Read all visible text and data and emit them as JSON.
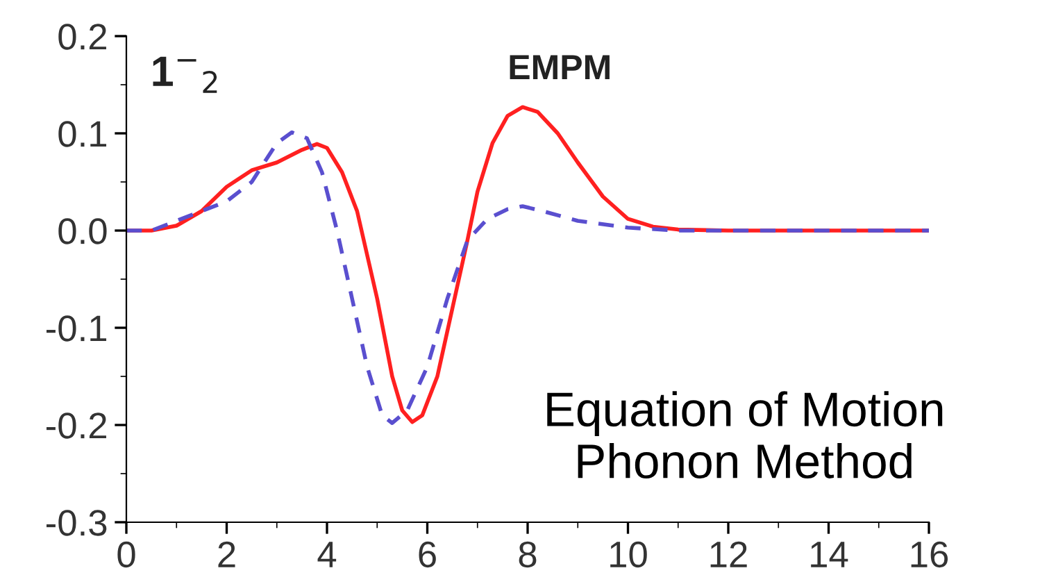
{
  "chart_data": {
    "type": "line",
    "annotations": [
      "1$^{−}$$_{2}$",
      "EMPM",
      "Equation of Motion\nPhonon Method"
    ],
    "series": [
      {
        "color": "#ff2020",
        "line_style": "solid",
        "x": [
          0,
          0.5,
          1,
          1.5,
          2,
          2.5,
          3,
          3.5,
          3.8,
          4,
          4.3,
          4.6,
          5,
          5.3,
          5.5,
          5.7,
          5.9,
          6.2,
          6.5,
          6.8,
          7,
          7.3,
          7.6,
          7.9,
          8.2,
          8.6,
          9,
          9.5,
          10,
          10.5,
          11,
          12,
          16
        ],
        "values": [
          0,
          0,
          0.005,
          0.02,
          0.045,
          0.062,
          0.07,
          0.083,
          0.089,
          0.085,
          0.06,
          0.02,
          -0.07,
          -0.15,
          -0.185,
          -0.197,
          -0.19,
          -0.15,
          -0.08,
          -0.01,
          0.04,
          0.09,
          0.118,
          0.127,
          0.122,
          0.1,
          0.07,
          0.035,
          0.012,
          0.004,
          0.001,
          0,
          0
        ]
      },
      {
        "color": "#5a4fcf",
        "line_style": "dashed",
        "x": [
          0,
          0.5,
          1,
          1.5,
          2,
          2.5,
          3,
          3.3,
          3.6,
          3.9,
          4.2,
          4.5,
          4.8,
          5.1,
          5.3,
          5.6,
          6,
          6.4,
          6.8,
          7.2,
          7.6,
          7.9,
          8.3,
          9,
          10,
          11,
          16
        ],
        "values": [
          0,
          0,
          0.01,
          0.02,
          0.03,
          0.05,
          0.09,
          0.101,
          0.095,
          0.06,
          0,
          -0.07,
          -0.14,
          -0.19,
          -0.198,
          -0.185,
          -0.14,
          -0.07,
          -0.01,
          0.012,
          0.022,
          0.025,
          0.02,
          0.01,
          0.003,
          0,
          0
        ]
      }
    ],
    "xlim": [
      0,
      16
    ],
    "xticks": [
      0,
      2,
      4,
      6,
      8,
      10,
      12,
      14,
      16
    ],
    "ylim": [
      -0.3,
      0.2
    ],
    "yticks": [
      {
        "value": -0.3,
        "label": "-0.3"
      },
      {
        "value": -0.2,
        "label": "-0.2"
      },
      {
        "value": -0.1,
        "label": "-0.1"
      },
      {
        "value": 0.0,
        "label": "0.0"
      },
      {
        "value": 0.1,
        "label": "0.1"
      },
      {
        "value": 0.2,
        "label": "0.2"
      }
    ],
    "grid": false,
    "legend": false,
    "marker": "none"
  }
}
